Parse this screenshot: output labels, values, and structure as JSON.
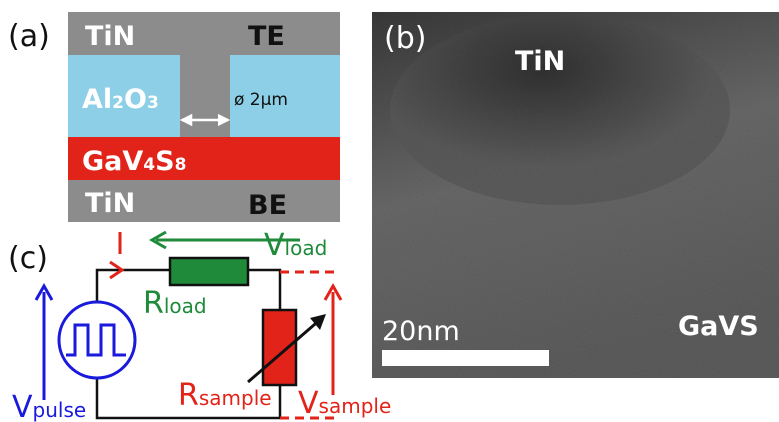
{
  "panel_a": {
    "label": "(a)",
    "top_electrode_material": "TiN",
    "top_electrode_label": "TE",
    "insulator": {
      "main": "Al",
      "sub1": "2",
      "mid": "O",
      "sub2": "3"
    },
    "hole_size": "ø 2µm",
    "active_layer": {
      "main": "GaV",
      "sub1": "4",
      "mid": "S",
      "sub2": "8"
    },
    "bottom_electrode_material": "TiN",
    "bottom_electrode_label": "BE"
  },
  "panel_b": {
    "label": "(b)",
    "top_label": "TiN",
    "bottom_label": "GaVS",
    "scale_bar": "20nm"
  },
  "panel_c": {
    "label": "(c)",
    "v_load": {
      "main": "V",
      "sub": "load"
    },
    "r_load": {
      "main": "R",
      "sub": "load"
    },
    "r_sample": {
      "main": "R",
      "sub": "sample"
    },
    "v_sample": {
      "main": "V",
      "sub": "sample"
    },
    "v_pulse": {
      "main": "V",
      "sub": "pulse"
    }
  }
}
